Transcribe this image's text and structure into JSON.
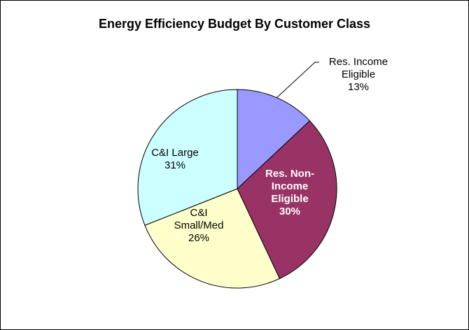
{
  "chart_data": {
    "type": "pie",
    "title": "Energy Efficiency Budget By Customer Class",
    "categories": [
      "Res. Income\nEligible",
      "Res. Non-\nIncome\nEligible",
      "C&I\nSmall/Med",
      "C&I Large"
    ],
    "values": [
      13,
      30,
      26,
      31
    ],
    "value_labels": [
      "13%",
      "30%",
      "26%",
      "31%"
    ],
    "colors": [
      "#9999ff",
      "#993366",
      "#ffffcc",
      "#ccffff"
    ]
  }
}
